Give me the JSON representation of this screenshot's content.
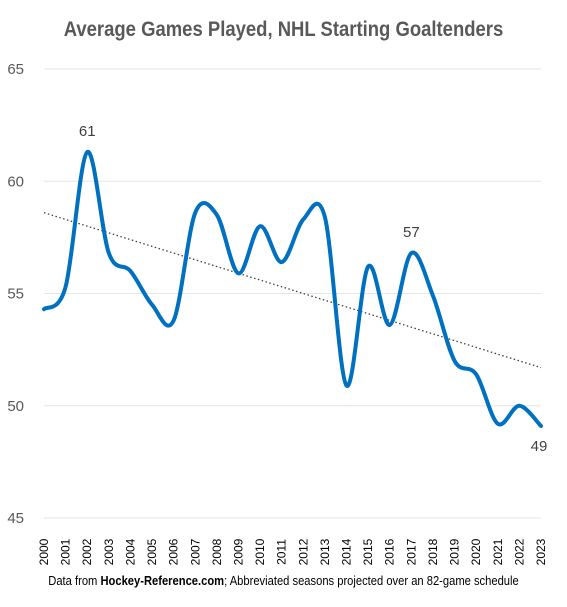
{
  "footer": {
    "prefix": "Data from ",
    "source": "Hockey-Reference.com",
    "suffix": "; Abbreviated seasons projected over an 82-game schedule"
  },
  "chart_data": {
    "type": "line",
    "title": "Average Games Played, NHL Starting Goaltenders",
    "xlabel": "",
    "ylabel": "",
    "ylim": [
      45,
      65
    ],
    "yticks": [
      45,
      50,
      55,
      60,
      65
    ],
    "grid": true,
    "categories": [
      "2000",
      "2001",
      "2002",
      "2003",
      "2004",
      "2005",
      "2006",
      "2007",
      "2008",
      "2009",
      "2010",
      "2011",
      "2012",
      "2013",
      "2014",
      "2015",
      "2016",
      "2017",
      "2018",
      "2019",
      "2020",
      "2021",
      "2022",
      "2023"
    ],
    "series": [
      {
        "values": [
          54.3,
          55.3,
          61.3,
          56.8,
          56.0,
          54.5,
          53.8,
          58.6,
          58.5,
          55.9,
          58.0,
          56.4,
          58.3,
          58.4,
          50.9,
          56.2,
          53.6,
          56.8,
          54.9,
          52.0,
          51.4,
          49.2,
          50.0,
          49.1
        ],
        "color": "#0070C0"
      }
    ],
    "trendline": {
      "style": "dotted",
      "color": "#404040",
      "start": 58.6,
      "end": 51.7
    },
    "annotations": [
      {
        "index": 2,
        "text": "61",
        "position": "above"
      },
      {
        "index": 17,
        "text": "57",
        "position": "above"
      },
      {
        "index": 23,
        "text": "49",
        "position": "below"
      }
    ]
  }
}
